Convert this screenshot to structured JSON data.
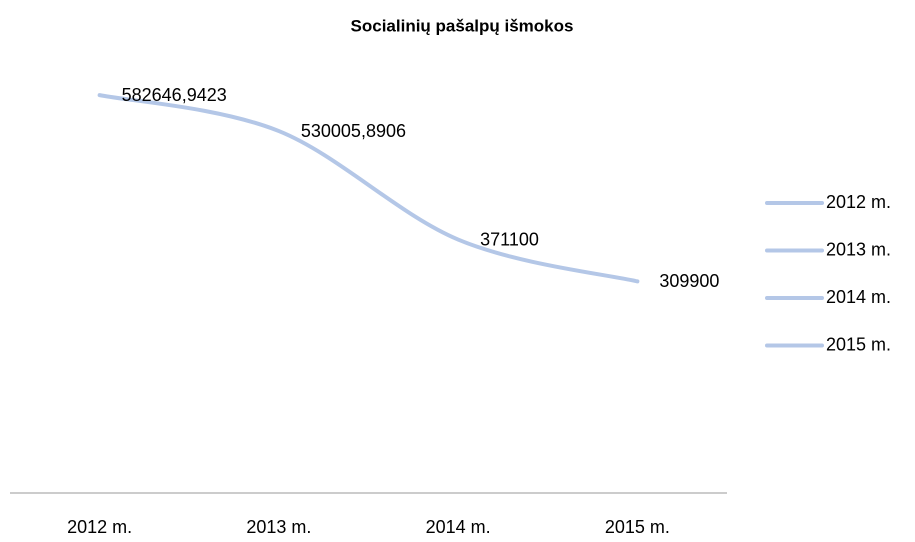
{
  "chart_data": {
    "type": "line",
    "title": "Socialinių pašalpų išmokos",
    "categories": [
      "2012 m.",
      "2013 m.",
      "2014 m.",
      "2015 m."
    ],
    "values": [
      582646.9423,
      530005.8906,
      371100,
      309900
    ],
    "value_labels": [
      "582646,9423",
      "530005,8906",
      "371100",
      "309900"
    ],
    "color": "#b4c7e7",
    "smooth": true,
    "ylim": [
      0,
      700000
    ],
    "grid": false,
    "legend": "right"
  }
}
